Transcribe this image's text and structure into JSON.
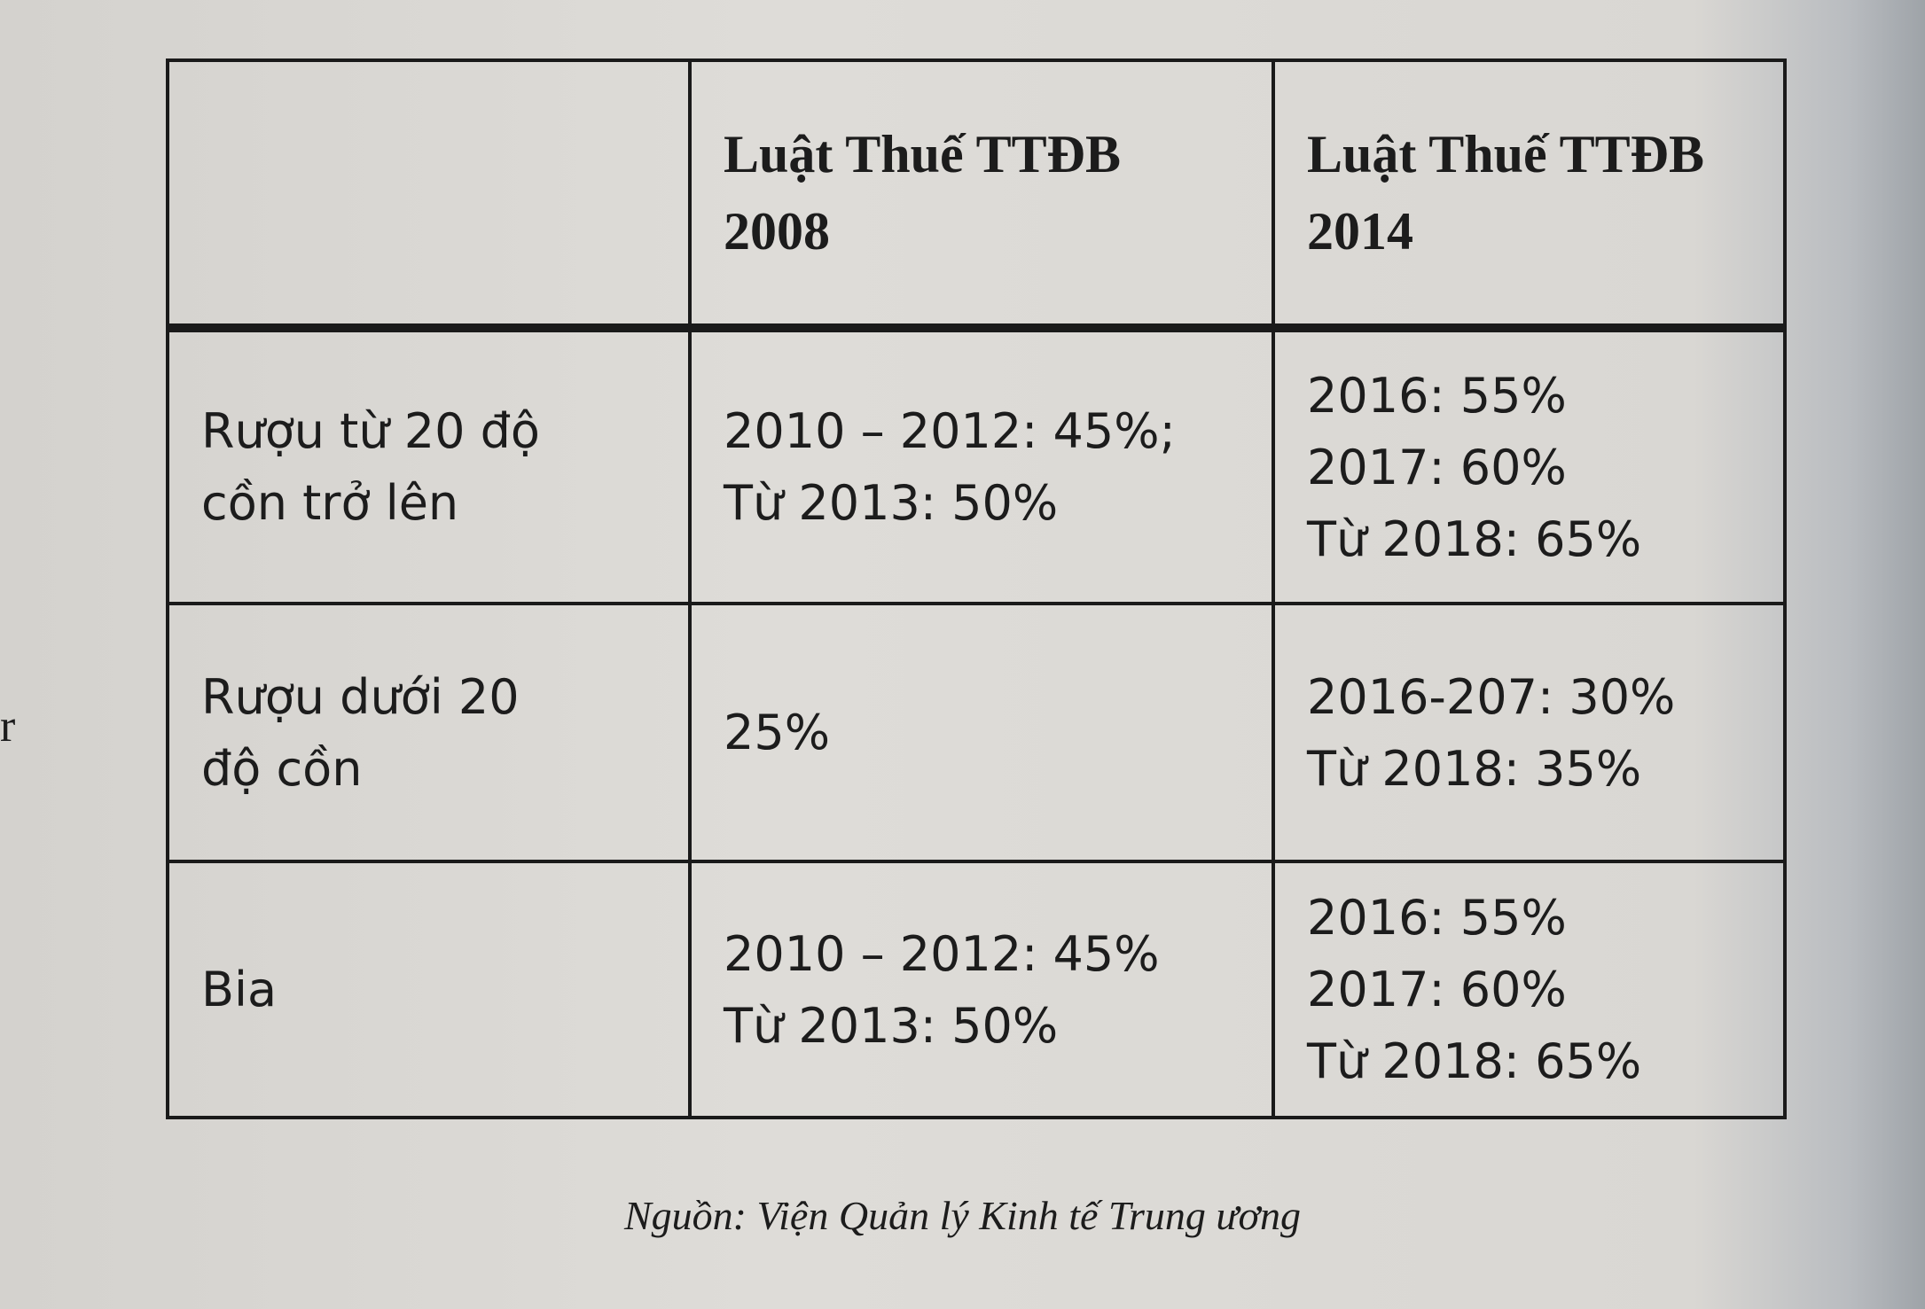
{
  "margin_fragment": "r",
  "table": {
    "header": [
      [
        "Luật Thuế TTĐB",
        "2008"
      ],
      [
        "Luật Thuế TTĐB",
        "2014"
      ]
    ],
    "rows": [
      {
        "label": [
          "Rượu từ 20 độ",
          "cồn trở lên"
        ],
        "cells": [
          [
            "2010 – 2012: 45%;",
            "Từ 2013: 50%"
          ],
          [
            "2016: 55%",
            "2017: 60%",
            "Từ 2018: 65%"
          ]
        ]
      },
      {
        "label": [
          "Rượu dưới 20",
          "độ cồn"
        ],
        "cells": [
          [
            "25%"
          ],
          [
            "2016-207: 30%",
            "Từ 2018: 35%"
          ]
        ]
      },
      {
        "label": [
          "Bia"
        ],
        "cells": [
          [
            "2010 – 2012: 45%",
            "Từ 2013: 50%"
          ],
          [
            "2016: 55%",
            "2017: 60%",
            "Từ 2018: 65%"
          ]
        ]
      }
    ]
  },
  "source": "Nguồn: Viện Quản lý Kinh tế Trung ương"
}
